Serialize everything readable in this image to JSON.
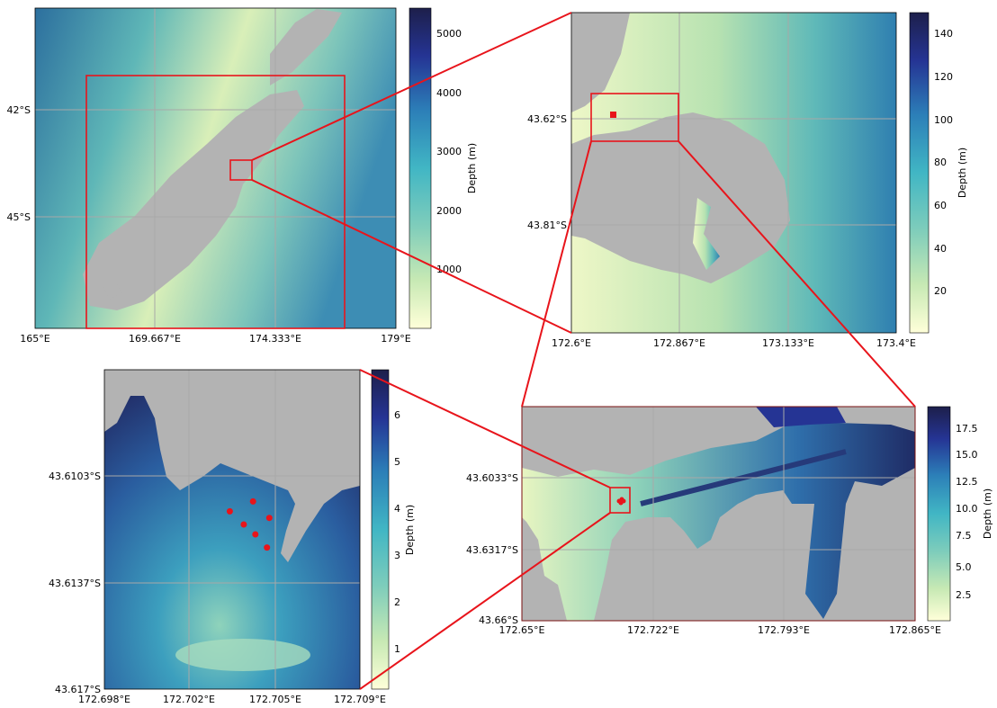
{
  "panels": {
    "nz": {
      "x_ticks": [
        "165°E",
        "169.667°E",
        "174.333°E",
        "179°E"
      ],
      "y_ticks": [
        "42°S",
        "45°S"
      ],
      "colorbar": {
        "label": "Depth (m)",
        "ticks": [
          "5000",
          "4000",
          "3000",
          "2000",
          "1000"
        ]
      }
    },
    "banks": {
      "x_ticks": [
        "172.6°E",
        "172.867°E",
        "173.133°E",
        "173.4°E"
      ],
      "y_ticks": [
        "43.62°S",
        "43.81°S"
      ],
      "colorbar": {
        "label": "Depth (m)",
        "ticks": [
          "140",
          "120",
          "100",
          "80",
          "60",
          "40",
          "20"
        ]
      }
    },
    "harbour": {
      "x_ticks": [
        "172.65°E",
        "172.722°E",
        "172.793°E",
        "172.865°E"
      ],
      "y_ticks": [
        "43.6033°S",
        "43.6317°S",
        "43.66°S"
      ],
      "colorbar": {
        "label": "Depth (m)",
        "ticks": [
          "17.5",
          "15.0",
          "12.5",
          "10.0",
          "7.5",
          "5.0",
          "2.5"
        ]
      }
    },
    "site": {
      "x_ticks": [
        "172.698°E",
        "172.702°E",
        "172.705°E",
        "172.709°E"
      ],
      "y_ticks": [
        "43.6103°S",
        "43.6137°S",
        "43.617°S"
      ],
      "colorbar": {
        "label": "Depth (m)",
        "ticks": [
          "6",
          "5",
          "4",
          "3",
          "2",
          "1"
        ]
      }
    }
  },
  "colors": {
    "land": "#b3b3b3",
    "zoom_box": "#e8141b",
    "sample_points": "#e8141b",
    "colormap": [
      "#ffffd9",
      "#c7e9b4",
      "#7fcdbb",
      "#41b6c4",
      "#2c7fb8",
      "#253494",
      "#1d1f4b"
    ]
  },
  "sample_points": [
    {
      "lon": 172.7034,
      "lat": 43.6116
    },
    {
      "lon": 172.704,
      "lat": 43.612
    },
    {
      "lon": 172.7044,
      "lat": 43.6113
    },
    {
      "lon": 172.7045,
      "lat": 43.6123
    },
    {
      "lon": 172.7051,
      "lat": 43.6118
    },
    {
      "lon": 172.705,
      "lat": 43.6127
    }
  ]
}
